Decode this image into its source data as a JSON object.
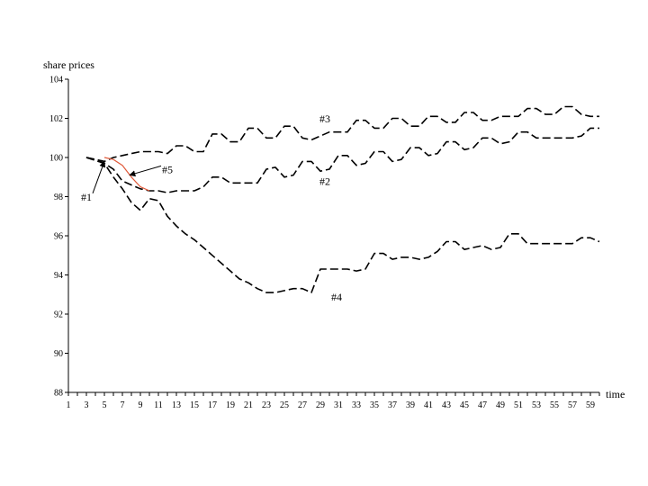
{
  "chart_data": {
    "type": "line",
    "ylabel": "share prices",
    "xlabel": "time",
    "ylim": [
      88,
      104
    ],
    "y_ticks": [
      88,
      90,
      92,
      94,
      96,
      98,
      100,
      102,
      104
    ],
    "xlim": [
      1,
      60
    ],
    "x_ticks": [
      1,
      3,
      5,
      7,
      9,
      11,
      13,
      15,
      17,
      19,
      21,
      23,
      25,
      27,
      29,
      31,
      33,
      35,
      37,
      39,
      41,
      43,
      45,
      47,
      49,
      51,
      53,
      55,
      57,
      59
    ],
    "grid": false,
    "series": [
      {
        "name": "#1",
        "color": "#000000",
        "style": "dashed",
        "x": [
          3,
          4,
          5
        ],
        "values": [
          100.0,
          99.9,
          99.8
        ]
      },
      {
        "name": "#2",
        "color": "#000000",
        "style": "dashed",
        "x": [
          3,
          5,
          6,
          7,
          8,
          9,
          10,
          11,
          12,
          13,
          14,
          15,
          16,
          17,
          18,
          19,
          20,
          21,
          22,
          23,
          24,
          25,
          26,
          27,
          28,
          29,
          30,
          31,
          32,
          33,
          34,
          35,
          36,
          37,
          38,
          39,
          40,
          41,
          42,
          43,
          44,
          45,
          46,
          47,
          48,
          49,
          50,
          51,
          52,
          53,
          54,
          55,
          56,
          57,
          58,
          59,
          60
        ],
        "values": [
          100.0,
          99.7,
          99.4,
          98.8,
          98.6,
          98.4,
          98.3,
          98.3,
          98.2,
          98.3,
          98.3,
          98.3,
          98.5,
          99.0,
          99.0,
          98.7,
          98.7,
          98.7,
          98.7,
          99.4,
          99.5,
          99.0,
          99.1,
          99.8,
          99.8,
          99.3,
          99.4,
          100.1,
          100.1,
          99.6,
          99.7,
          100.3,
          100.3,
          99.8,
          99.9,
          100.5,
          100.5,
          100.1,
          100.2,
          100.8,
          100.8,
          100.4,
          100.5,
          101.0,
          101.0,
          100.7,
          100.8,
          101.3,
          101.3,
          101.0,
          101.0,
          101.0,
          101.0,
          101.0,
          101.1,
          101.5,
          101.5
        ]
      },
      {
        "name": "#3",
        "color": "#000000",
        "style": "dashed",
        "x": [
          3,
          5,
          6,
          7,
          8,
          9,
          10,
          11,
          12,
          13,
          14,
          15,
          16,
          17,
          18,
          19,
          20,
          21,
          22,
          23,
          24,
          25,
          26,
          27,
          28,
          29,
          30,
          31,
          32,
          33,
          34,
          35,
          36,
          37,
          38,
          39,
          40,
          41,
          42,
          43,
          44,
          45,
          46,
          47,
          48,
          49,
          50,
          51,
          52,
          53,
          54,
          55,
          56,
          57,
          58,
          59,
          60
        ],
        "values": [
          100.0,
          99.8,
          100.0,
          100.1,
          100.2,
          100.3,
          100.3,
          100.3,
          100.2,
          100.6,
          100.6,
          100.3,
          100.3,
          101.2,
          101.2,
          100.8,
          100.8,
          101.5,
          101.5,
          101.0,
          101.0,
          101.6,
          101.6,
          101.0,
          100.9,
          101.1,
          101.3,
          101.3,
          101.3,
          101.9,
          101.9,
          101.5,
          101.5,
          102.0,
          102.0,
          101.6,
          101.6,
          102.1,
          102.1,
          101.8,
          101.8,
          102.3,
          102.3,
          101.9,
          101.9,
          102.1,
          102.1,
          102.1,
          102.5,
          102.5,
          102.2,
          102.2,
          102.6,
          102.6,
          102.2,
          102.1,
          102.1
        ]
      },
      {
        "name": "#4",
        "color": "#000000",
        "style": "dashed",
        "x": [
          3,
          5,
          6,
          7,
          8,
          9,
          10,
          11,
          12,
          13,
          14,
          15,
          16,
          17,
          18,
          19,
          20,
          21,
          22,
          23,
          24,
          25,
          26,
          27,
          28,
          29,
          30,
          31,
          32,
          33,
          34,
          35,
          36,
          37,
          38,
          39,
          40,
          41,
          42,
          43,
          44,
          45,
          46,
          47,
          48,
          49,
          50,
          51,
          52,
          53,
          54,
          55,
          56,
          57,
          58,
          59,
          60
        ],
        "values": [
          100.0,
          99.7,
          99.0,
          98.4,
          97.7,
          97.3,
          97.9,
          97.8,
          97.0,
          96.5,
          96.1,
          95.8,
          95.4,
          95.0,
          94.6,
          94.2,
          93.8,
          93.6,
          93.3,
          93.1,
          93.1,
          93.2,
          93.3,
          93.3,
          93.1,
          94.3,
          94.3,
          94.3,
          94.3,
          94.2,
          94.3,
          95.1,
          95.1,
          94.8,
          94.9,
          94.9,
          94.8,
          94.9,
          95.2,
          95.7,
          95.7,
          95.3,
          95.4,
          95.5,
          95.3,
          95.4,
          96.1,
          96.1,
          95.6,
          95.6,
          95.6,
          95.6,
          95.6,
          95.6,
          95.9,
          95.9,
          95.7
        ]
      },
      {
        "name": "#5",
        "color": "#e05a3a",
        "style": "solid",
        "x": [
          5,
          6,
          7,
          8,
          9,
          10
        ],
        "values": [
          100.0,
          99.9,
          99.6,
          99.0,
          98.5,
          98.3
        ]
      }
    ],
    "annotations": [
      {
        "text": "#1",
        "series": "#1",
        "arrow_to": [
          5.0,
          99.8
        ],
        "label_at": [
          3.0,
          97.8
        ]
      },
      {
        "text": "#2",
        "series": "#2",
        "label_at": [
          29.5,
          98.6
        ]
      },
      {
        "text": "#3",
        "series": "#3",
        "label_at": [
          29.5,
          101.8
        ]
      },
      {
        "text": "#4",
        "series": "#4",
        "label_at": [
          30.8,
          92.7
        ]
      },
      {
        "text": "#5",
        "series": "#5",
        "arrow_to": [
          7.8,
          99.1
        ],
        "label_at": [
          12.0,
          99.2
        ]
      }
    ]
  }
}
